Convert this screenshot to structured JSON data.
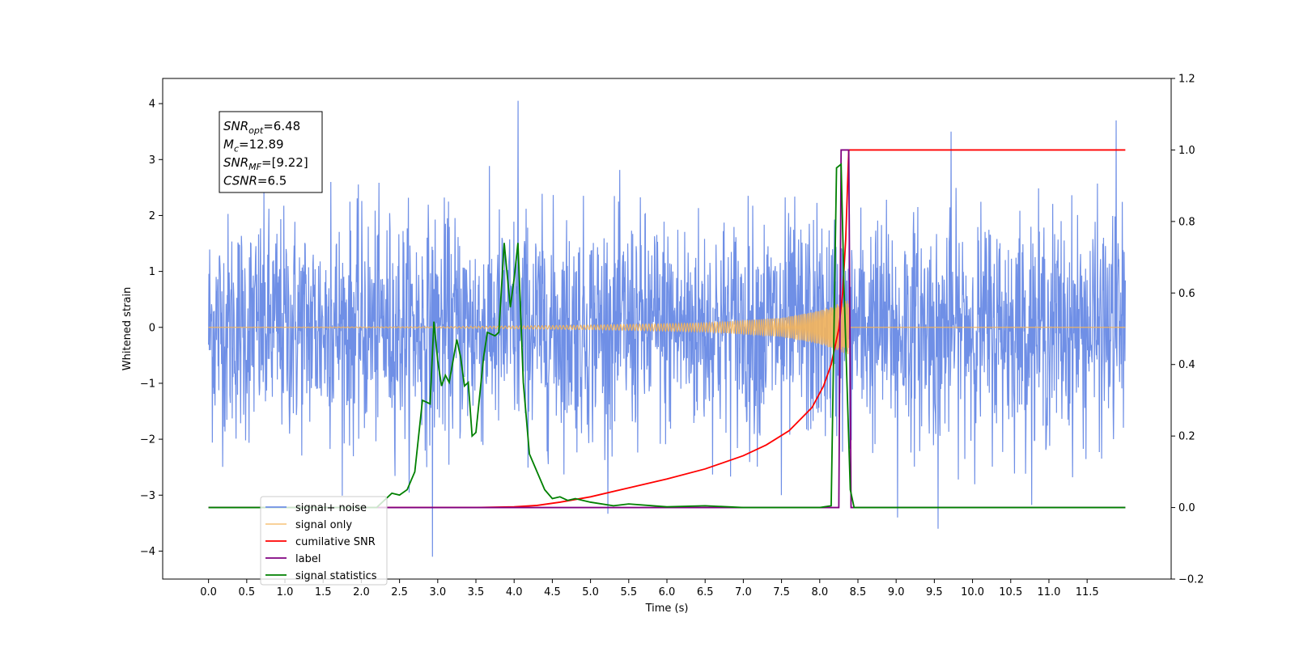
{
  "chart_data": {
    "type": "line",
    "xlabel": "Time (s)",
    "ylabel": "Whitened strain",
    "xlim": [
      -0.6,
      12.6
    ],
    "ylim": [
      -4.5,
      4.45
    ],
    "ylim_right": [
      -0.2,
      1.2
    ],
    "x_ticks": [
      "0.0",
      "0.5",
      "1.0",
      "1.5",
      "2.0",
      "2.5",
      "3.0",
      "3.5",
      "4.0",
      "4.5",
      "5.0",
      "5.5",
      "6.0",
      "6.5",
      "7.0",
      "7.5",
      "8.0",
      "8.5",
      "9.0",
      "9.5",
      "10.0",
      "10.5",
      "11.0",
      "11.5"
    ],
    "y_ticks_left": [
      "−4",
      "−3",
      "−2",
      "−1",
      "0",
      "1",
      "2",
      "3",
      "4"
    ],
    "y_ticks_right": [
      "−0.2",
      "0.0",
      "0.2",
      "0.4",
      "0.6",
      "0.8",
      "1.0",
      "1.2"
    ],
    "annotation": [
      {
        "name": "SNR",
        "sub": "opt",
        "value": "=6.48"
      },
      {
        "name": "M",
        "sub": "c",
        "value": "=12.89"
      },
      {
        "name": "SNR",
        "sub": "MF",
        "value": "=[9.22]"
      },
      {
        "name": "CSNR",
        "sub": "",
        "value": "=6.5"
      }
    ],
    "legend_position": "lower left",
    "colors": {
      "signal_noise": "#6f8fe6",
      "signal_only": "#f5b55a",
      "cumulative_snr": "#ff0000",
      "label": "#800080",
      "signal_statistics": "#008000"
    },
    "series": [
      {
        "name": "signal+ noise",
        "axis": "left",
        "description": "whitened noise time series, duration 0-12 s, amplitude approx. ±2.2 with peaks to ±4",
        "noise_amplitude": 1.0,
        "peaks": [
          [
            4.05,
            4.05
          ],
          [
            2.93,
            -4.1
          ],
          [
            9.55,
            -3.6
          ],
          [
            9.72,
            3.5
          ],
          [
            11.88,
            3.7
          ],
          [
            9.02,
            -3.4
          ],
          [
            1.6,
            2.6
          ],
          [
            7.5,
            -3.0
          ]
        ]
      },
      {
        "name": "signal only",
        "axis": "left",
        "description": "chirp waveform growing in amplitude until merger near 8.4 s",
        "merger_time": 8.38,
        "envelope": [
          [
            0.0,
            0.0
          ],
          [
            3.0,
            0.01
          ],
          [
            5.0,
            0.04
          ],
          [
            6.5,
            0.08
          ],
          [
            7.5,
            0.17
          ],
          [
            8.0,
            0.3
          ],
          [
            8.3,
            0.45
          ],
          [
            8.38,
            0.5
          ]
        ]
      },
      {
        "name": "cumilative SNR",
        "axis": "right",
        "points": [
          [
            0.0,
            0.0
          ],
          [
            3.5,
            0.0
          ],
          [
            4.0,
            0.002
          ],
          [
            4.3,
            0.006
          ],
          [
            4.6,
            0.015
          ],
          [
            5.0,
            0.03
          ],
          [
            5.5,
            0.055
          ],
          [
            6.0,
            0.08
          ],
          [
            6.5,
            0.108
          ],
          [
            7.0,
            0.145
          ],
          [
            7.3,
            0.175
          ],
          [
            7.6,
            0.215
          ],
          [
            7.9,
            0.28
          ],
          [
            8.05,
            0.34
          ],
          [
            8.15,
            0.4
          ],
          [
            8.25,
            0.5
          ],
          [
            8.3,
            0.6
          ],
          [
            8.34,
            0.75
          ],
          [
            8.38,
            1.0
          ],
          [
            11.0,
            1.0
          ],
          [
            12.0,
            1.0
          ]
        ]
      },
      {
        "name": "label",
        "axis": "right",
        "points": [
          [
            0.0,
            0.0
          ],
          [
            8.25,
            0.0
          ],
          [
            8.28,
            1.0
          ],
          [
            8.38,
            1.0
          ],
          [
            8.41,
            0.0
          ],
          [
            12.0,
            0.0
          ]
        ]
      },
      {
        "name": "signal statistics",
        "axis": "right",
        "points": [
          [
            0.0,
            0.0
          ],
          [
            2.2,
            0.0
          ],
          [
            2.4,
            0.04
          ],
          [
            2.5,
            0.035
          ],
          [
            2.6,
            0.05
          ],
          [
            2.7,
            0.1
          ],
          [
            2.8,
            0.3
          ],
          [
            2.9,
            0.29
          ],
          [
            2.95,
            0.52
          ],
          [
            3.0,
            0.41
          ],
          [
            3.05,
            0.34
          ],
          [
            3.1,
            0.37
          ],
          [
            3.15,
            0.35
          ],
          [
            3.25,
            0.47
          ],
          [
            3.3,
            0.42
          ],
          [
            3.35,
            0.34
          ],
          [
            3.4,
            0.35
          ],
          [
            3.45,
            0.2
          ],
          [
            3.5,
            0.21
          ],
          [
            3.6,
            0.42
          ],
          [
            3.65,
            0.49
          ],
          [
            3.75,
            0.48
          ],
          [
            3.8,
            0.49
          ],
          [
            3.87,
            0.74
          ],
          [
            3.95,
            0.56
          ],
          [
            4.0,
            0.64
          ],
          [
            4.05,
            0.74
          ],
          [
            4.12,
            0.35
          ],
          [
            4.2,
            0.15
          ],
          [
            4.3,
            0.1
          ],
          [
            4.4,
            0.05
          ],
          [
            4.5,
            0.025
          ],
          [
            4.6,
            0.03
          ],
          [
            4.7,
            0.02
          ],
          [
            4.8,
            0.025
          ],
          [
            5.0,
            0.015
          ],
          [
            5.3,
            0.005
          ],
          [
            5.5,
            0.01
          ],
          [
            6.0,
            0.002
          ],
          [
            6.5,
            0.005
          ],
          [
            7.0,
            0.0
          ],
          [
            8.0,
            0.0
          ],
          [
            8.15,
            0.005
          ],
          [
            8.22,
            0.95
          ],
          [
            8.28,
            0.96
          ],
          [
            8.32,
            0.6
          ],
          [
            8.4,
            0.05
          ],
          [
            8.45,
            0.0
          ],
          [
            12.0,
            0.0
          ]
        ]
      }
    ]
  }
}
